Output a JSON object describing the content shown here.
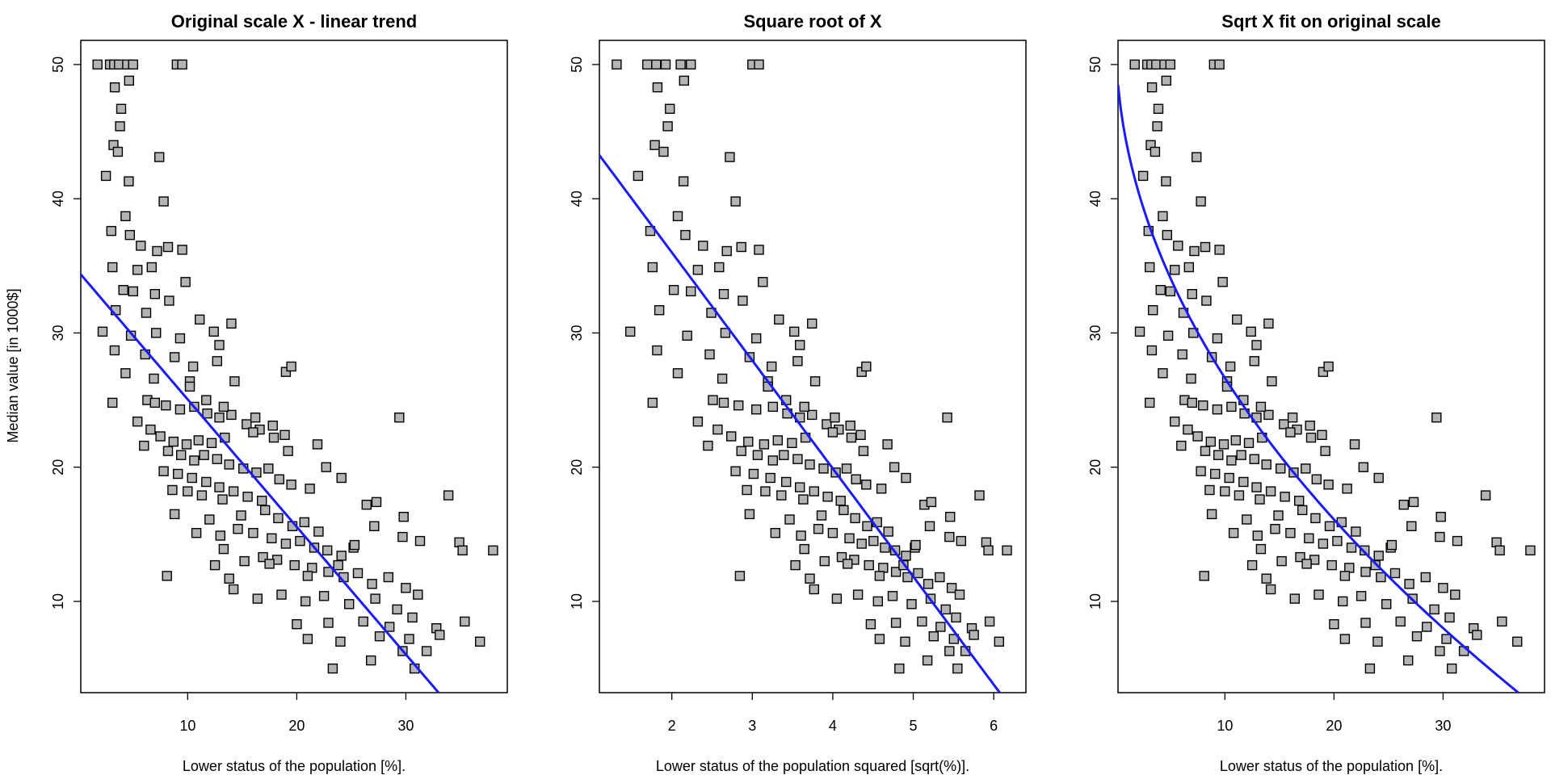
{
  "colors": {
    "point_fill": "#b4b4b4",
    "point_edge": "#000000",
    "fit_line": "#1a1aff"
  },
  "figure": {
    "y_axis_label": "Median value [in 1000$]"
  },
  "panels": [
    {
      "title": "Original scale X - linear trend",
      "xlabel": "Lower status of the population [%].",
      "xticks": [
        "10",
        "20",
        "30"
      ],
      "yticks": [
        "10",
        "20",
        "30",
        "40",
        "50"
      ]
    },
    {
      "title": "Square root of X",
      "xlabel": "Lower status of the population squared [sqrt(%)].",
      "xticks": [
        "2",
        "3",
        "4",
        "5",
        "6"
      ],
      "yticks": [
        "10",
        "20",
        "30",
        "40",
        "50"
      ]
    },
    {
      "title": "Sqrt X fit on original scale",
      "xlabel": "Lower status of the population [%].",
      "xticks": [
        "10",
        "20",
        "30"
      ],
      "yticks": [
        "10",
        "20",
        "30",
        "40",
        "50"
      ]
    }
  ],
  "chart_data": [
    {
      "type": "scatter",
      "title": "Original scale X - linear trend",
      "xlabel": "Lower status of the population [%].",
      "ylabel": "Median value [in 1000$]",
      "xlim": [
        0.2,
        39.3
      ],
      "ylim": [
        3.2,
        51.8
      ],
      "xticks": [
        10,
        20,
        30
      ],
      "yticks": [
        10,
        20,
        30,
        40,
        50
      ],
      "fit": {
        "kind": "linear",
        "intercept": 34.55,
        "slope": -0.95
      },
      "points": [
        [
          1.73,
          50
        ],
        [
          2.87,
          50
        ],
        [
          3.26,
          50
        ],
        [
          3.7,
          50
        ],
        [
          4.45,
          50
        ],
        [
          5.0,
          50
        ],
        [
          9.0,
          50
        ],
        [
          9.5,
          50
        ],
        [
          3.32,
          48.3
        ],
        [
          4.63,
          48.8
        ],
        [
          3.9,
          46.7
        ],
        [
          3.8,
          45.4
        ],
        [
          3.2,
          44.0
        ],
        [
          3.6,
          43.5
        ],
        [
          2.5,
          41.7
        ],
        [
          4.6,
          41.3
        ],
        [
          7.4,
          43.1
        ],
        [
          7.8,
          39.8
        ],
        [
          4.3,
          38.7
        ],
        [
          3.0,
          37.6
        ],
        [
          4.7,
          37.3
        ],
        [
          5.7,
          36.5
        ],
        [
          7.2,
          36.1
        ],
        [
          8.2,
          36.4
        ],
        [
          9.5,
          36.2
        ],
        [
          3.1,
          34.9
        ],
        [
          5.4,
          34.7
        ],
        [
          6.7,
          34.9
        ],
        [
          9.8,
          33.8
        ],
        [
          4.1,
          33.2
        ],
        [
          5.0,
          33.1
        ],
        [
          7.0,
          32.9
        ],
        [
          8.3,
          32.4
        ],
        [
          3.4,
          31.7
        ],
        [
          6.2,
          31.5
        ],
        [
          11.1,
          31.0
        ],
        [
          12.4,
          30.1
        ],
        [
          14.0,
          30.7
        ],
        [
          2.2,
          30.1
        ],
        [
          4.8,
          29.8
        ],
        [
          7.1,
          30.0
        ],
        [
          9.3,
          29.6
        ],
        [
          12.9,
          29.1
        ],
        [
          3.3,
          28.7
        ],
        [
          6.1,
          28.4
        ],
        [
          8.8,
          28.2
        ],
        [
          10.5,
          27.5
        ],
        [
          12.7,
          27.9
        ],
        [
          19.0,
          27.1
        ],
        [
          19.5,
          27.5
        ],
        [
          4.3,
          27.0
        ],
        [
          6.9,
          26.6
        ],
        [
          10.2,
          26.4
        ],
        [
          14.3,
          26.4
        ],
        [
          3.1,
          24.8
        ],
        [
          6.3,
          25.0
        ],
        [
          7.0,
          24.8
        ],
        [
          8.0,
          24.6
        ],
        [
          9.3,
          24.3
        ],
        [
          10.6,
          24.5
        ],
        [
          11.8,
          24.0
        ],
        [
          12.9,
          23.7
        ],
        [
          14.0,
          23.9
        ],
        [
          15.4,
          23.2
        ],
        [
          16.6,
          22.8
        ],
        [
          17.8,
          23.1
        ],
        [
          18.9,
          22.4
        ],
        [
          16.0,
          22.6
        ],
        [
          13.4,
          22.2
        ],
        [
          12.2,
          21.8
        ],
        [
          11.0,
          22.0
        ],
        [
          9.9,
          21.7
        ],
        [
          8.7,
          21.9
        ],
        [
          7.5,
          22.3
        ],
        [
          6.6,
          22.8
        ],
        [
          5.4,
          23.4
        ],
        [
          6.0,
          21.6
        ],
        [
          8.2,
          21.2
        ],
        [
          9.4,
          20.9
        ],
        [
          10.6,
          20.5
        ],
        [
          11.5,
          20.9
        ],
        [
          12.7,
          20.6
        ],
        [
          13.8,
          20.2
        ],
        [
          15.1,
          19.9
        ],
        [
          16.3,
          19.6
        ],
        [
          17.4,
          19.9
        ],
        [
          18.4,
          19.1
        ],
        [
          19.5,
          18.7
        ],
        [
          21.2,
          18.4
        ],
        [
          9.1,
          19.5
        ],
        [
          10.4,
          19.2
        ],
        [
          11.7,
          18.9
        ],
        [
          12.9,
          18.5
        ],
        [
          14.2,
          18.2
        ],
        [
          15.5,
          17.8
        ],
        [
          16.8,
          17.5
        ],
        [
          13.2,
          17.6
        ],
        [
          11.3,
          17.9
        ],
        [
          8.6,
          18.3
        ],
        [
          7.8,
          19.7
        ],
        [
          10.0,
          18.2
        ],
        [
          12.0,
          16.1
        ],
        [
          14.9,
          16.4
        ],
        [
          17.1,
          16.8
        ],
        [
          18.3,
          16.2
        ],
        [
          19.6,
          15.6
        ],
        [
          20.7,
          15.9
        ],
        [
          22.0,
          15.2
        ],
        [
          14.6,
          15.4
        ],
        [
          16.0,
          15.1
        ],
        [
          17.7,
          14.7
        ],
        [
          19.0,
          14.3
        ],
        [
          20.3,
          14.5
        ],
        [
          21.6,
          14.0
        ],
        [
          22.8,
          13.8
        ],
        [
          24.1,
          13.4
        ],
        [
          25.2,
          14.0
        ],
        [
          16.9,
          13.3
        ],
        [
          18.2,
          13.1
        ],
        [
          19.8,
          12.7
        ],
        [
          21.4,
          12.5
        ],
        [
          22.9,
          12.2
        ],
        [
          24.3,
          11.8
        ],
        [
          25.6,
          12.1
        ],
        [
          26.9,
          11.3
        ],
        [
          28.4,
          11.8
        ],
        [
          30.0,
          11.0
        ],
        [
          14.2,
          10.9
        ],
        [
          16.4,
          10.2
        ],
        [
          18.6,
          10.5
        ],
        [
          20.8,
          10.0
        ],
        [
          22.5,
          10.4
        ],
        [
          24.8,
          9.8
        ],
        [
          27.2,
          10.2
        ],
        [
          29.2,
          9.4
        ],
        [
          31.1,
          10.5
        ],
        [
          20.0,
          8.3
        ],
        [
          22.9,
          8.4
        ],
        [
          26.1,
          8.5
        ],
        [
          28.5,
          8.1
        ],
        [
          30.6,
          8.8
        ],
        [
          32.8,
          8.0
        ],
        [
          35.4,
          8.5
        ],
        [
          21.0,
          7.2
        ],
        [
          24.0,
          7.0
        ],
        [
          27.6,
          7.4
        ],
        [
          30.3,
          7.2
        ],
        [
          33.1,
          7.5
        ],
        [
          36.8,
          7.0
        ],
        [
          26.8,
          5.6
        ],
        [
          23.3,
          5.0
        ],
        [
          30.8,
          5.0
        ],
        [
          31.9,
          6.3
        ],
        [
          29.7,
          6.3
        ],
        [
          13.3,
          13.9
        ],
        [
          15.2,
          13.0
        ],
        [
          13.8,
          11.7
        ],
        [
          12.5,
          12.7
        ],
        [
          17.5,
          12.8
        ],
        [
          21.0,
          11.9
        ],
        [
          23.8,
          12.7
        ],
        [
          25.3,
          14.2
        ],
        [
          27.1,
          15.6
        ],
        [
          29.7,
          14.8
        ],
        [
          33.9,
          17.9
        ],
        [
          34.9,
          14.4
        ],
        [
          35.2,
          13.8
        ],
        [
          38.0,
          13.8
        ],
        [
          31.3,
          14.5
        ],
        [
          29.8,
          16.3
        ],
        [
          26.4,
          17.2
        ],
        [
          27.3,
          17.4
        ],
        [
          24.1,
          19.2
        ],
        [
          22.7,
          20.0
        ],
        [
          21.9,
          21.7
        ],
        [
          19.2,
          21.2
        ],
        [
          17.9,
          22.2
        ],
        [
          8.1,
          11.9
        ],
        [
          8.8,
          16.5
        ],
        [
          10.8,
          15.1
        ],
        [
          13.0,
          14.9
        ],
        [
          29.4,
          23.7
        ],
        [
          16.2,
          23.7
        ],
        [
          13.3,
          24.5
        ],
        [
          11.7,
          25.0
        ],
        [
          10.2,
          26.0
        ]
      ]
    },
    {
      "type": "scatter",
      "title": "Square root of X",
      "xlabel": "Lower status of the population squared [sqrt(%)].",
      "xlim": [
        1.1,
        6.4
      ],
      "ylim": [
        3.2,
        51.8
      ],
      "xticks": [
        2,
        3,
        4,
        5,
        6
      ],
      "yticks": [
        10,
        20,
        30,
        40,
        50
      ],
      "fit": {
        "kind": "linear",
        "intercept": 52.1,
        "slope": -8.05
      },
      "points": "derived from panel 1 as [sqrt(x), y]"
    },
    {
      "type": "scatter",
      "title": "Sqrt X fit on original scale",
      "xlabel": "Lower status of the population [%].",
      "xlim": [
        0.2,
        39.3
      ],
      "ylim": [
        3.2,
        51.8
      ],
      "xticks": [
        10,
        20,
        30
      ],
      "yticks": [
        10,
        20,
        30,
        40,
        50
      ],
      "fit": {
        "kind": "sqrt",
        "intercept": 52.1,
        "slope": -8.05
      },
      "points": "same as panel 1"
    }
  ]
}
